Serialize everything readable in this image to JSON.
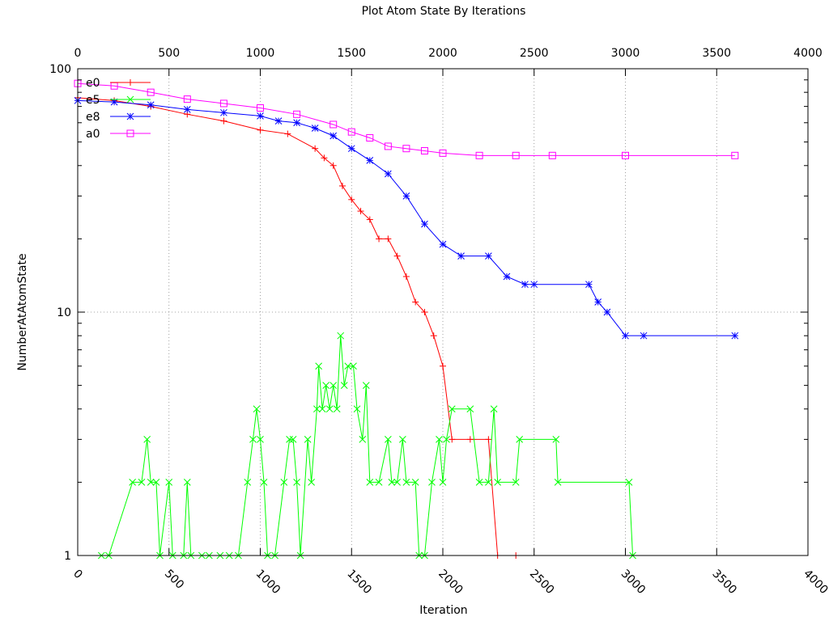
{
  "chart_data": {
    "type": "line",
    "title": "Plot Atom State By Iterations",
    "xlabel": "Iteration",
    "ylabel": "NumberAtAtomState",
    "xlim": [
      0,
      4000
    ],
    "ylim": [
      1,
      100
    ],
    "y_scale": "log",
    "grid": true,
    "legend_position": "top-left",
    "x_ticks": [
      "0",
      "500",
      "1000",
      "1500",
      "2000",
      "2500",
      "3000",
      "3500",
      "4000"
    ],
    "x_tick_values": [
      0,
      500,
      1000,
      1500,
      2000,
      2500,
      3000,
      3500,
      4000
    ],
    "y_ticks": [
      "1",
      "10",
      "100"
    ],
    "y_tick_values": [
      1,
      10,
      100
    ],
    "series": [
      {
        "name": "e0",
        "color": "#ff0000",
        "marker": "plus",
        "points": [
          [
            0,
            76
          ],
          [
            200,
            74
          ],
          [
            400,
            70
          ],
          [
            600,
            65
          ],
          [
            800,
            61
          ],
          [
            1000,
            56
          ],
          [
            1150,
            54
          ],
          [
            1300,
            47
          ],
          [
            1350,
            43
          ],
          [
            1400,
            40
          ],
          [
            1450,
            33
          ],
          [
            1500,
            29
          ],
          [
            1550,
            26
          ],
          [
            1600,
            24
          ],
          [
            1650,
            20
          ],
          [
            1700,
            20
          ],
          [
            1750,
            17
          ],
          [
            1800,
            14
          ],
          [
            1850,
            11
          ],
          [
            1900,
            10
          ],
          [
            1950,
            8
          ],
          [
            2000,
            6
          ],
          [
            2050,
            3
          ],
          [
            2150,
            3
          ],
          [
            2250,
            3
          ],
          [
            2300,
            1
          ],
          [
            2400,
            1
          ]
        ]
      },
      {
        "name": "e5",
        "color": "#00ff00",
        "marker": "x",
        "points": [
          [
            130,
            1
          ],
          [
            170,
            1
          ],
          [
            300,
            2
          ],
          [
            350,
            2
          ],
          [
            380,
            3
          ],
          [
            400,
            2
          ],
          [
            430,
            2
          ],
          [
            450,
            1
          ],
          [
            500,
            2
          ],
          [
            520,
            1
          ],
          [
            580,
            1
          ],
          [
            600,
            2
          ],
          [
            620,
            1
          ],
          [
            680,
            1
          ],
          [
            720,
            1
          ],
          [
            780,
            1
          ],
          [
            830,
            1
          ],
          [
            880,
            1
          ],
          [
            930,
            2
          ],
          [
            960,
            3
          ],
          [
            980,
            4
          ],
          [
            1000,
            3
          ],
          [
            1020,
            2
          ],
          [
            1040,
            1
          ],
          [
            1080,
            1
          ],
          [
            1130,
            2
          ],
          [
            1160,
            3
          ],
          [
            1180,
            3
          ],
          [
            1200,
            2
          ],
          [
            1220,
            1
          ],
          [
            1260,
            3
          ],
          [
            1280,
            2
          ],
          [
            1310,
            4
          ],
          [
            1320,
            6
          ],
          [
            1340,
            4
          ],
          [
            1360,
            5
          ],
          [
            1380,
            4
          ],
          [
            1400,
            5
          ],
          [
            1420,
            4
          ],
          [
            1440,
            8
          ],
          [
            1460,
            5
          ],
          [
            1480,
            6
          ],
          [
            1510,
            6
          ],
          [
            1530,
            4
          ],
          [
            1560,
            3
          ],
          [
            1580,
            5
          ],
          [
            1600,
            2
          ],
          [
            1650,
            2
          ],
          [
            1700,
            3
          ],
          [
            1720,
            2
          ],
          [
            1750,
            2
          ],
          [
            1780,
            3
          ],
          [
            1800,
            2
          ],
          [
            1850,
            2
          ],
          [
            1870,
            1
          ],
          [
            1900,
            1
          ],
          [
            1940,
            2
          ],
          [
            1980,
            3
          ],
          [
            2000,
            2
          ],
          [
            2020,
            3
          ],
          [
            2050,
            4
          ],
          [
            2150,
            4
          ],
          [
            2200,
            2
          ],
          [
            2250,
            2
          ],
          [
            2280,
            4
          ],
          [
            2300,
            2
          ],
          [
            2400,
            2
          ],
          [
            2420,
            3
          ],
          [
            2620,
            3
          ],
          [
            2630,
            2
          ],
          [
            3020,
            2
          ],
          [
            3040,
            1
          ]
        ]
      },
      {
        "name": "e8",
        "color": "#0000ff",
        "marker": "star",
        "points": [
          [
            0,
            74
          ],
          [
            200,
            73
          ],
          [
            400,
            71
          ],
          [
            600,
            68
          ],
          [
            800,
            66
          ],
          [
            1000,
            64
          ],
          [
            1100,
            61
          ],
          [
            1200,
            60
          ],
          [
            1300,
            57
          ],
          [
            1400,
            53
          ],
          [
            1500,
            47
          ],
          [
            1600,
            42
          ],
          [
            1700,
            37
          ],
          [
            1800,
            30
          ],
          [
            1900,
            23
          ],
          [
            2000,
            19
          ],
          [
            2100,
            17
          ],
          [
            2250,
            17
          ],
          [
            2350,
            14
          ],
          [
            2450,
            13
          ],
          [
            2500,
            13
          ],
          [
            2800,
            13
          ],
          [
            2850,
            11
          ],
          [
            2900,
            10
          ],
          [
            3000,
            8
          ],
          [
            3100,
            8
          ],
          [
            3600,
            8
          ]
        ]
      },
      {
        "name": "a0",
        "color": "#ff00ff",
        "marker": "box",
        "points": [
          [
            0,
            87
          ],
          [
            200,
            85
          ],
          [
            400,
            80
          ],
          [
            600,
            75
          ],
          [
            800,
            72
          ],
          [
            1000,
            69
          ],
          [
            1200,
            65
          ],
          [
            1400,
            59
          ],
          [
            1500,
            55
          ],
          [
            1600,
            52
          ],
          [
            1700,
            48
          ],
          [
            1800,
            47
          ],
          [
            1900,
            46
          ],
          [
            2000,
            45
          ],
          [
            2200,
            44
          ],
          [
            2400,
            44
          ],
          [
            2600,
            44
          ],
          [
            3000,
            44
          ],
          [
            3600,
            44
          ]
        ]
      }
    ]
  }
}
